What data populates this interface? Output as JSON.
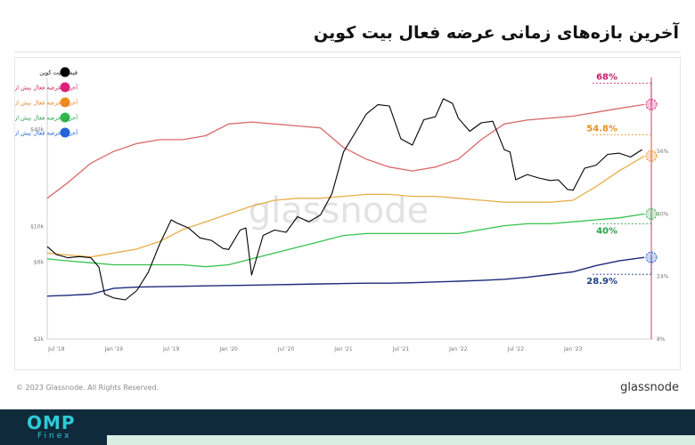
{
  "page": {
    "title": "آخرین بازه‌های زمانی عرضه فعال بیت کوین",
    "copyright": "© 2023 Glassnode. All Rights Reserved.",
    "brand": "glassnode",
    "watermark": "glassnode",
    "footer_logo_main": "OMP",
    "footer_logo_sub": "Finex"
  },
  "colors": {
    "price": "#000000",
    "supply_1y": "#d96a6a",
    "supply_2y": "#e7ae48",
    "supply_3y": "#36c24e",
    "supply_5y": "#1d2a7a",
    "marker_1y": "#e02080",
    "marker_2y": "#f08a1c",
    "marker_3y": "#2eb84e",
    "marker_5y": "#2563d6",
    "ann_68": "#c81d6e",
    "ann_548": "#e58f1e",
    "ann_40": "#2a9d4a",
    "ann_289": "#1d3f8a"
  },
  "chart_data": {
    "type": "line",
    "title": "",
    "x_ticks": [
      "Jul '18",
      "Jan '19",
      "Jul '19",
      "Jan '20",
      "Jul '20",
      "Jan '21",
      "Jul '21",
      "Jan '22",
      "Jul '22",
      "Jan '23"
    ],
    "x_tick_dates": [
      2018.5,
      2019.0,
      2019.5,
      2020.0,
      2020.5,
      2021.0,
      2021.5,
      2022.0,
      2022.5,
      2023.0
    ],
    "x_range": [
      2018.42,
      2023.65
    ],
    "left_axis": {
      "scale": "log",
      "ticks": [
        "$40k",
        "$10k",
        "$6k",
        "$2k"
      ],
      "tick_values": [
        40000,
        10000,
        6000,
        2000
      ],
      "range": [
        2000,
        80000
      ]
    },
    "right_axis": {
      "ticks": [
        "56%",
        "40%",
        "24%",
        "8%"
      ],
      "tick_values": [
        56,
        40,
        24,
        8
      ],
      "range": [
        8,
        74
      ]
    },
    "grid": false,
    "legend_position": "top-left",
    "series": [
      {
        "name": "قیمت بیت کوین",
        "axis": "left",
        "x": [
          2018.42,
          2018.5,
          2018.6,
          2018.7,
          2018.8,
          2018.87,
          2018.92,
          2019.0,
          2019.1,
          2019.2,
          2019.3,
          2019.4,
          2019.5,
          2019.55,
          2019.65,
          2019.75,
          2019.85,
          2019.95,
          2020.0,
          2020.1,
          2020.15,
          2020.2,
          2020.3,
          2020.4,
          2020.5,
          2020.6,
          2020.7,
          2020.8,
          2020.9,
          2021.0,
          2021.1,
          2021.2,
          2021.3,
          2021.4,
          2021.5,
          2021.6,
          2021.7,
          2021.8,
          2021.87,
          2021.95,
          2022.0,
          2022.1,
          2022.2,
          2022.3,
          2022.4,
          2022.45,
          2022.5,
          2022.6,
          2022.7,
          2022.8,
          2022.87,
          2022.95,
          2023.0,
          2023.1,
          2023.2,
          2023.3,
          2023.4,
          2023.5,
          2023.6
        ],
        "y": [
          7500,
          6700,
          6400,
          6500,
          6400,
          5600,
          3800,
          3600,
          3500,
          4000,
          5200,
          7800,
          11000,
          10500,
          9800,
          8500,
          8200,
          7300,
          7200,
          9500,
          9800,
          5000,
          8800,
          9500,
          9200,
          11500,
          10700,
          11800,
          16000,
          29000,
          38000,
          50000,
          57000,
          56000,
          35000,
          32000,
          46000,
          48000,
          62000,
          58000,
          47000,
          39000,
          44000,
          45000,
          30000,
          29000,
          19500,
          21000,
          20000,
          19300,
          19500,
          17000,
          16800,
          23000,
          24000,
          28000,
          28500,
          27000,
          30000
        ]
      },
      {
        "name": "آخرین عرضه فعال بیش از 1 سال قبل",
        "axis": "right",
        "x": [
          2018.42,
          2018.6,
          2018.8,
          2019.0,
          2019.2,
          2019.4,
          2019.6,
          2019.8,
          2020.0,
          2020.2,
          2020.4,
          2020.6,
          2020.8,
          2021.0,
          2021.2,
          2021.4,
          2021.6,
          2021.8,
          2022.0,
          2022.2,
          2022.4,
          2022.6,
          2022.8,
          2023.0,
          2023.2,
          2023.4,
          2023.62
        ],
        "y": [
          44,
          48,
          53,
          56,
          58,
          59,
          59,
          60,
          63,
          63.5,
          63,
          62.5,
          62,
          57,
          54,
          52,
          51,
          52,
          54,
          59,
          63,
          64,
          64.5,
          65,
          66,
          67,
          68
        ]
      },
      {
        "name": "آخرین عرضه فعال بیش از 2 سال قبل",
        "axis": "right",
        "x": [
          2018.42,
          2018.6,
          2018.8,
          2019.0,
          2019.2,
          2019.4,
          2019.6,
          2019.8,
          2020.0,
          2020.2,
          2020.4,
          2020.6,
          2020.8,
          2021.0,
          2021.2,
          2021.4,
          2021.6,
          2021.8,
          2022.0,
          2022.2,
          2022.4,
          2022.6,
          2022.8,
          2023.0,
          2023.2,
          2023.4,
          2023.62
        ],
        "y": [
          30,
          29.5,
          29,
          30,
          31,
          33,
          36,
          38,
          40,
          42,
          43.5,
          44,
          44,
          44.5,
          45,
          45,
          44.5,
          44.5,
          44,
          43.5,
          43,
          43,
          43,
          43.5,
          47,
          51,
          54.8
        ]
      },
      {
        "name": "آخرین عرضه فعال بیش از 3 سال قبل",
        "axis": "right",
        "x": [
          2018.42,
          2018.6,
          2018.8,
          2019.0,
          2019.2,
          2019.4,
          2019.6,
          2019.8,
          2020.0,
          2020.2,
          2020.4,
          2020.6,
          2020.8,
          2021.0,
          2021.2,
          2021.4,
          2021.6,
          2021.8,
          2022.0,
          2022.2,
          2022.4,
          2022.6,
          2022.8,
          2023.0,
          2023.2,
          2023.4,
          2023.62
        ],
        "y": [
          28.5,
          28,
          27.5,
          27,
          27,
          27,
          27,
          26.5,
          27,
          28.5,
          30,
          31.5,
          33,
          34.5,
          35,
          35,
          35,
          35,
          35,
          36,
          37,
          37.5,
          37.5,
          38,
          38.5,
          39,
          40
        ]
      },
      {
        "name": "آخرین عرضه فعال بیش از 5 سال قبل",
        "axis": "right",
        "x": [
          2018.42,
          2018.6,
          2018.8,
          2019.0,
          2019.2,
          2019.4,
          2019.6,
          2019.8,
          2020.0,
          2020.2,
          2020.4,
          2020.6,
          2020.8,
          2021.0,
          2021.2,
          2021.4,
          2021.6,
          2021.8,
          2022.0,
          2022.2,
          2022.4,
          2022.6,
          2022.8,
          2023.0,
          2023.2,
          2023.4,
          2023.62
        ],
        "y": [
          19,
          19.2,
          19.5,
          21,
          21.3,
          21.4,
          21.5,
          21.6,
          21.7,
          21.8,
          21.9,
          22,
          22.1,
          22.2,
          22.3,
          22.3,
          22.4,
          22.6,
          22.8,
          23,
          23.3,
          23.8,
          24.5,
          25.2,
          26.8,
          28,
          28.9
        ]
      }
    ],
    "annotations": [
      {
        "text": "68%",
        "series": 1,
        "value": 68
      },
      {
        "text": "54.8%",
        "series": 2,
        "value": 54.8
      },
      {
        "text": "40%",
        "series": 3,
        "value": 40
      },
      {
        "text": "28.9%",
        "series": 4,
        "value": 28.9
      }
    ]
  }
}
